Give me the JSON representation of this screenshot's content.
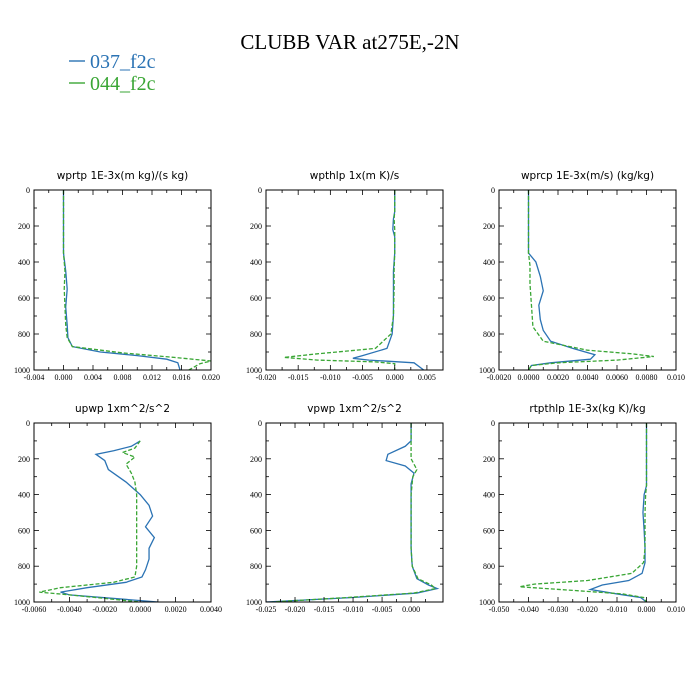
{
  "figure": {
    "title": "CLUBB VAR at275E,-2N",
    "legend": [
      {
        "label": "037_f2c",
        "color": "#2b73b4",
        "dash": "solid"
      },
      {
        "label": "044_f2c",
        "color": "#3aa635",
        "dash": "dashed"
      }
    ]
  },
  "chart_data": [
    {
      "type": "line",
      "title": "wprtp  1E-3x(m kg)/(s kg)",
      "xlim": [
        -0.004,
        0.02
      ],
      "ylim": [
        0,
        1000
      ],
      "y_inverted": true,
      "xticks": [
        "-0.004",
        "0.000",
        "0.004",
        "0.008",
        "0.012",
        "0.016",
        "0.020"
      ],
      "xtick_values": [
        -0.004,
        0.0,
        0.004,
        0.008,
        0.012,
        0.016,
        0.02
      ],
      "yticks": [
        "0",
        "200",
        "400",
        "600",
        "800",
        "1000"
      ],
      "ytick_values": [
        0,
        200,
        400,
        600,
        800,
        1000
      ],
      "series": [
        {
          "name": "037_f2c",
          "points": [
            [
              0.0,
              0
            ],
            [
              0.0,
              150
            ],
            [
              0.0,
              350
            ],
            [
              0.0003,
              450
            ],
            [
              0.0005,
              550
            ],
            [
              0.0003,
              650
            ],
            [
              0.0005,
              750
            ],
            [
              0.0006,
              820
            ],
            [
              0.0012,
              870
            ],
            [
              0.005,
              900
            ],
            [
              0.01,
              920
            ],
            [
              0.014,
              940
            ],
            [
              0.0155,
              960
            ],
            [
              0.0158,
              1000
            ]
          ]
        },
        {
          "name": "044_f2c",
          "points": [
            [
              0.0,
              0
            ],
            [
              0.0,
              150
            ],
            [
              0.0,
              350
            ],
            [
              0.0002,
              450
            ],
            [
              0.0001,
              550
            ],
            [
              0.0002,
              650
            ],
            [
              0.0003,
              750
            ],
            [
              0.0005,
              820
            ],
            [
              0.0012,
              870
            ],
            [
              0.008,
              905
            ],
            [
              0.015,
              930
            ],
            [
              0.02,
              950
            ],
            [
              0.0185,
              965
            ],
            [
              0.017,
              1000
            ]
          ]
        }
      ]
    },
    {
      "type": "line",
      "title": "wpthlp  1x(m K)/s",
      "xlim": [
        -0.02,
        0.0075
      ],
      "ylim": [
        0,
        1000
      ],
      "y_inverted": true,
      "xticks": [
        "-0.020",
        "-0.015",
        "-0.010",
        "-0.005",
        "0.000",
        "0.005"
      ],
      "xtick_values": [
        -0.02,
        -0.015,
        -0.01,
        -0.005,
        0.0,
        0.005
      ],
      "yticks": [
        "0",
        "200",
        "400",
        "600",
        "800",
        "1000"
      ],
      "ytick_values": [
        0,
        200,
        400,
        600,
        800,
        1000
      ],
      "series": [
        {
          "name": "037_f2c",
          "points": [
            [
              0.0,
              0
            ],
            [
              0.0,
              120
            ],
            [
              -0.0002,
              160
            ],
            [
              -0.0003,
              220
            ],
            [
              0.0,
              260
            ],
            [
              0.0,
              350
            ],
            [
              -0.0002,
              450
            ],
            [
              -0.0002,
              550
            ],
            [
              -0.0002,
              700
            ],
            [
              -0.0004,
              800
            ],
            [
              -0.0012,
              880
            ],
            [
              -0.005,
              920
            ],
            [
              -0.0065,
              935
            ],
            [
              -0.004,
              945
            ],
            [
              0.003,
              960
            ],
            [
              0.0045,
              1000
            ]
          ]
        },
        {
          "name": "044_f2c",
          "points": [
            [
              0.0,
              0
            ],
            [
              0.0,
              120
            ],
            [
              -0.0001,
              160
            ],
            [
              0.0,
              220
            ],
            [
              0.0,
              350
            ],
            [
              -0.0001,
              450
            ],
            [
              -0.0001,
              550
            ],
            [
              -0.0002,
              700
            ],
            [
              -0.0006,
              800
            ],
            [
              -0.003,
              880
            ],
            [
              -0.012,
              910
            ],
            [
              -0.0172,
              930
            ],
            [
              -0.012,
              945
            ],
            [
              -0.003,
              955
            ],
            [
              0.0,
              965
            ],
            [
              0.0,
              1000
            ]
          ]
        }
      ]
    },
    {
      "type": "line",
      "title": "wprcp  1E-3x(m/s) (kg/kg)",
      "xlim": [
        -0.002,
        0.01
      ],
      "ylim": [
        0,
        1000
      ],
      "y_inverted": true,
      "xticks": [
        "-0.0020",
        "0.0000",
        "0.0020",
        "0.0040",
        "0.0060",
        "0.0080",
        "0.010"
      ],
      "xtick_values": [
        -0.002,
        0.0,
        0.002,
        0.004,
        0.006,
        0.008,
        0.01
      ],
      "yticks": [
        "0",
        "200",
        "400",
        "600",
        "800",
        "1000"
      ],
      "ytick_values": [
        0,
        200,
        400,
        600,
        800,
        1000
      ],
      "series": [
        {
          "name": "037_f2c",
          "points": [
            [
              0.0,
              0
            ],
            [
              0.0,
              200
            ],
            [
              0.0,
              350
            ],
            [
              0.0005,
              400
            ],
            [
              0.0008,
              480
            ],
            [
              0.001,
              560
            ],
            [
              0.0007,
              640
            ],
            [
              0.0008,
              720
            ],
            [
              0.001,
              780
            ],
            [
              0.0015,
              840
            ],
            [
              0.003,
              880
            ],
            [
              0.0045,
              915
            ],
            [
              0.0042,
              940
            ],
            [
              0.0015,
              960
            ],
            [
              0.0002,
              975
            ],
            [
              0.0,
              1000
            ]
          ]
        },
        {
          "name": "044_f2c",
          "points": [
            [
              0.0,
              0
            ],
            [
              0.0,
              200
            ],
            [
              0.0,
              350
            ],
            [
              0.0001,
              420
            ],
            [
              0.0001,
              520
            ],
            [
              0.0002,
              640
            ],
            [
              0.0003,
              760
            ],
            [
              0.001,
              840
            ],
            [
              0.004,
              890
            ],
            [
              0.007,
              910
            ],
            [
              0.0085,
              925
            ],
            [
              0.006,
              945
            ],
            [
              0.002,
              960
            ],
            [
              0.0002,
              975
            ],
            [
              0.0,
              1000
            ]
          ]
        }
      ]
    },
    {
      "type": "line",
      "title": "upwp  1xm^2/s^2",
      "xlim": [
        -0.006,
        0.004
      ],
      "ylim": [
        0,
        1000
      ],
      "y_inverted": true,
      "xticks": [
        "-0.0060",
        "-0.0040",
        "-0.0020",
        "0.0000",
        "0.0020",
        "0.0040"
      ],
      "xtick_values": [
        -0.006,
        -0.004,
        -0.002,
        0.0,
        0.002,
        0.004
      ],
      "yticks": [
        "0",
        "200",
        "400",
        "600",
        "800",
        "1000"
      ],
      "ytick_values": [
        0,
        200,
        400,
        600,
        800,
        1000
      ],
      "series": [
        {
          "name": "037_f2c",
          "points": [
            [
              0.0,
              100
            ],
            [
              -0.0005,
              130
            ],
            [
              -0.0015,
              155
            ],
            [
              -0.0025,
              175
            ],
            [
              -0.002,
              210
            ],
            [
              -0.0018,
              260
            ],
            [
              -0.0008,
              330
            ],
            [
              0.0,
              400
            ],
            [
              0.0005,
              460
            ],
            [
              0.0007,
              520
            ],
            [
              0.0003,
              580
            ],
            [
              0.0008,
              640
            ],
            [
              0.0005,
              700
            ],
            [
              0.0005,
              760
            ],
            [
              0.0003,
              820
            ],
            [
              0.0001,
              860
            ],
            [
              -0.0008,
              890
            ],
            [
              -0.003,
              920
            ],
            [
              -0.0045,
              945
            ],
            [
              -0.004,
              960
            ],
            [
              0.001,
              1000
            ]
          ]
        },
        {
          "name": "044_f2c",
          "points": [
            [
              0.0,
              100
            ],
            [
              -0.0003,
              140
            ],
            [
              -0.001,
              165
            ],
            [
              -0.0003,
              190
            ],
            [
              -0.0008,
              230
            ],
            [
              -0.0005,
              280
            ],
            [
              -0.0003,
              330
            ],
            [
              -0.0002,
              400
            ],
            [
              -0.0002,
              500
            ],
            [
              -0.0002,
              600
            ],
            [
              -0.0002,
              700
            ],
            [
              -0.0002,
              800
            ],
            [
              -0.0003,
              860
            ],
            [
              -0.0015,
              890
            ],
            [
              -0.0045,
              920
            ],
            [
              -0.0057,
              945
            ],
            [
              -0.004,
              960
            ],
            [
              0.0,
              1000
            ]
          ]
        }
      ]
    },
    {
      "type": "line",
      "title": "vpwp  1xm^2/s^2",
      "xlim": [
        -0.025,
        0.0055
      ],
      "ylim": [
        0,
        1000
      ],
      "y_inverted": true,
      "xticks": [
        "-0.025",
        "-0.020",
        "-0.015",
        "-0.010",
        "-0.005",
        "0.000"
      ],
      "xtick_values": [
        -0.025,
        -0.02,
        -0.015,
        -0.01,
        -0.005,
        0.0
      ],
      "yticks": [
        "0",
        "200",
        "400",
        "600",
        "800",
        "1000"
      ],
      "ytick_values": [
        0,
        200,
        400,
        600,
        800,
        1000
      ],
      "series": [
        {
          "name": "037_f2c",
          "points": [
            [
              0.0,
              0
            ],
            [
              0.0,
              100
            ],
            [
              -0.001,
              130
            ],
            [
              -0.004,
              175
            ],
            [
              -0.0043,
              210
            ],
            [
              -0.001,
              240
            ],
            [
              0.0005,
              280
            ],
            [
              0.0,
              340
            ],
            [
              0.0,
              400
            ],
            [
              0.0,
              500
            ],
            [
              0.0,
              600
            ],
            [
              0.0,
              700
            ],
            [
              0.0002,
              800
            ],
            [
              0.001,
              870
            ],
            [
              0.003,
              905
            ],
            [
              0.0045,
              925
            ],
            [
              0.001,
              950
            ],
            [
              -0.01,
              975
            ],
            [
              -0.025,
              1000
            ]
          ]
        },
        {
          "name": "044_f2c",
          "points": [
            [
              0.0,
              0
            ],
            [
              0.0,
              100
            ],
            [
              0.0,
              150
            ],
            [
              0.0,
              200
            ],
            [
              0.001,
              260
            ],
            [
              0.0003,
              300
            ],
            [
              0.0,
              400
            ],
            [
              0.0,
              500
            ],
            [
              0.0,
              600
            ],
            [
              0.0,
              700
            ],
            [
              0.0002,
              800
            ],
            [
              0.0012,
              870
            ],
            [
              0.0035,
              905
            ],
            [
              0.0042,
              925
            ],
            [
              0.0005,
              950
            ],
            [
              -0.011,
              975
            ],
            [
              -0.024,
              1000
            ]
          ]
        }
      ]
    },
    {
      "type": "line",
      "title": "rtpthlp  1E-3x(kg K)/kg",
      "xlim": [
        -0.05,
        0.01
      ],
      "ylim": [
        0,
        1000
      ],
      "y_inverted": true,
      "xticks": [
        "-0.050",
        "-0.040",
        "-0.030",
        "-0.020",
        "-0.010",
        "0.000",
        "0.010"
      ],
      "xtick_values": [
        -0.05,
        -0.04,
        -0.03,
        -0.02,
        -0.01,
        0.0,
        0.01
      ],
      "yticks": [
        "0",
        "200",
        "400",
        "600",
        "800",
        "1000"
      ],
      "ytick_values": [
        0,
        200,
        400,
        600,
        800,
        1000
      ],
      "series": [
        {
          "name": "037_f2c",
          "points": [
            [
              0.0,
              0
            ],
            [
              0.0,
              200
            ],
            [
              0.0,
              350
            ],
            [
              -0.0008,
              400
            ],
            [
              -0.0012,
              500
            ],
            [
              -0.0008,
              600
            ],
            [
              -0.0005,
              700
            ],
            [
              -0.0005,
              780
            ],
            [
              -0.0015,
              840
            ],
            [
              -0.006,
              880
            ],
            [
              -0.015,
              905
            ],
            [
              -0.019,
              930
            ],
            [
              -0.01,
              955
            ],
            [
              -0.002,
              975
            ],
            [
              0.0,
              1000
            ]
          ]
        },
        {
          "name": "044_f2c",
          "points": [
            [
              0.0,
              0
            ],
            [
              0.0,
              200
            ],
            [
              0.0,
              350
            ],
            [
              -0.0003,
              400
            ],
            [
              -0.0005,
              500
            ],
            [
              -0.0005,
              600
            ],
            [
              -0.0005,
              700
            ],
            [
              -0.001,
              780
            ],
            [
              -0.005,
              840
            ],
            [
              -0.02,
              880
            ],
            [
              -0.038,
              900
            ],
            [
              -0.043,
              915
            ],
            [
              -0.025,
              935
            ],
            [
              -0.008,
              955
            ],
            [
              -0.001,
              975
            ],
            [
              0.0,
              1000
            ]
          ]
        }
      ]
    }
  ]
}
